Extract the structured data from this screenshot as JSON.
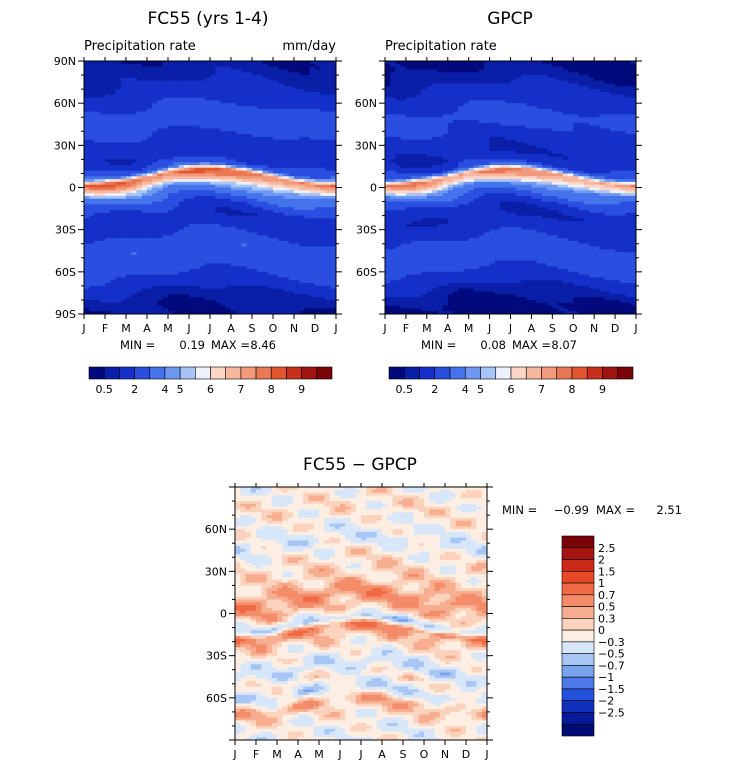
{
  "chart_data": [
    {
      "type": "heatmap",
      "title": "FC55 (yrs 1-4)",
      "subtitle_left": "Precipitation rate",
      "subtitle_right": "mm/day",
      "x_tick_labels": [
        "J",
        "F",
        "M",
        "A",
        "M",
        "J",
        "J",
        "A",
        "S",
        "O",
        "N",
        "D",
        "J"
      ],
      "y_tick_labels": [
        {
          "lat": 90,
          "label": "90N"
        },
        {
          "lat": 60,
          "label": "60N"
        },
        {
          "lat": 30,
          "label": "30N"
        },
        {
          "lat": 0,
          "label": "0"
        },
        {
          "lat": -30,
          "label": "30S"
        },
        {
          "lat": -60,
          "label": "60S"
        },
        {
          "lat": -90,
          "label": "90S"
        }
      ],
      "ylim": [
        -90,
        90
      ],
      "min_label": "MIN =",
      "min_value": "0.19",
      "max_label": "MAX =",
      "max_value": "8.46",
      "colorbar_levels": [
        "0.5",
        "2",
        "4",
        "5",
        "6",
        "7",
        "8",
        "9"
      ],
      "colorbar_colors": [
        "#000a7c",
        "#0a1fa8",
        "#1430c8",
        "#2a4fe0",
        "#4573ec",
        "#6f98f2",
        "#a6c4f6",
        "#eef1fb",
        "#fbd6c6",
        "#f8b8a0",
        "#f29a7b",
        "#ea7855",
        "#e1562f",
        "#c8301d",
        "#a01410",
        "#7a0508"
      ],
      "bands": [
        {
          "lat": 90,
          "value": 0.6
        },
        {
          "lat": 75,
          "value": 0.9
        },
        {
          "lat": 65,
          "value": 1.5
        },
        {
          "lat": 50,
          "value": 2.5
        },
        {
          "lat": 40,
          "value": 2.2
        },
        {
          "lat": 30,
          "value": 1.5
        },
        {
          "lat": 20,
          "value": 1.3
        },
        {
          "lat": 12,
          "value": 2.8
        },
        {
          "lat": 7,
          "value": 7.5
        },
        {
          "lat": 3,
          "value": 6.5
        },
        {
          "lat": -2,
          "value": 4.5
        },
        {
          "lat": -8,
          "value": 3.2
        },
        {
          "lat": -15,
          "value": 2.0
        },
        {
          "lat": -22,
          "value": 1.3
        },
        {
          "lat": -32,
          "value": 1.8
        },
        {
          "lat": -45,
          "value": 2.8
        },
        {
          "lat": -55,
          "value": 2.6
        },
        {
          "lat": -65,
          "value": 1.8
        },
        {
          "lat": -75,
          "value": 0.9
        },
        {
          "lat": -85,
          "value": 0.5
        }
      ]
    },
    {
      "type": "heatmap",
      "title": "GPCP",
      "subtitle_left": "Precipitation rate",
      "x_tick_labels": [
        "J",
        "F",
        "M",
        "A",
        "M",
        "J",
        "J",
        "A",
        "S",
        "O",
        "N",
        "D",
        "J"
      ],
      "y_tick_labels": [
        {
          "lat": 60,
          "label": "60N"
        },
        {
          "lat": 30,
          "label": "30N"
        },
        {
          "lat": 0,
          "label": "0"
        },
        {
          "lat": -30,
          "label": "30S"
        },
        {
          "lat": -60,
          "label": "60S"
        }
      ],
      "ylim": [
        -90,
        90
      ],
      "min_label": "MIN =",
      "min_value": "0.08",
      "max_label": "MAX =",
      "max_value": "8.07",
      "colorbar_levels": [
        "0.5",
        "2",
        "4",
        "5",
        "6",
        "7",
        "8",
        "9"
      ],
      "colorbar_colors": [
        "#000a7c",
        "#0a1fa8",
        "#1430c8",
        "#2a4fe0",
        "#4573ec",
        "#6f98f2",
        "#a6c4f6",
        "#eef1fb",
        "#fbd6c6",
        "#f8b8a0",
        "#f29a7b",
        "#ea7855",
        "#e1562f",
        "#c8301d",
        "#a01410",
        "#7a0508"
      ],
      "bands": [
        {
          "lat": 90,
          "value": 0.3
        },
        {
          "lat": 75,
          "value": 0.8
        },
        {
          "lat": 65,
          "value": 1.4
        },
        {
          "lat": 50,
          "value": 2.3
        },
        {
          "lat": 40,
          "value": 2.0
        },
        {
          "lat": 30,
          "value": 1.2
        },
        {
          "lat": 20,
          "value": 1.0
        },
        {
          "lat": 12,
          "value": 2.5
        },
        {
          "lat": 7,
          "value": 7.0
        },
        {
          "lat": 3,
          "value": 6.0
        },
        {
          "lat": -2,
          "value": 4.0
        },
        {
          "lat": -8,
          "value": 2.8
        },
        {
          "lat": -15,
          "value": 1.5
        },
        {
          "lat": -22,
          "value": 1.0
        },
        {
          "lat": -32,
          "value": 1.6
        },
        {
          "lat": -45,
          "value": 2.6
        },
        {
          "lat": -55,
          "value": 2.4
        },
        {
          "lat": -65,
          "value": 1.5
        },
        {
          "lat": -75,
          "value": 0.7
        },
        {
          "lat": -85,
          "value": 0.3
        }
      ]
    },
    {
      "type": "heatmap",
      "title": "FC55 − GPCP",
      "x_tick_labels": [
        "J",
        "F",
        "M",
        "A",
        "M",
        "J",
        "J",
        "A",
        "S",
        "O",
        "N",
        "D",
        "J"
      ],
      "y_tick_labels": [
        {
          "lat": 60,
          "label": "60N"
        },
        {
          "lat": 30,
          "label": "30N"
        },
        {
          "lat": 0,
          "label": "0"
        },
        {
          "lat": -30,
          "label": "30S"
        },
        {
          "lat": -60,
          "label": "60S"
        }
      ],
      "ylim": [
        -90,
        90
      ],
      "min_label": "MIN =",
      "min_value": "−0.99",
      "max_label": "MAX =",
      "max_value": "2.51",
      "colorbar_levels": [
        "2.5",
        "2",
        "1.5",
        "1",
        "0.7",
        "0.5",
        "0.3",
        "0",
        "−0.3",
        "−0.5",
        "−0.7",
        "−1",
        "−1.5",
        "−2",
        "−2.5"
      ],
      "colorbar_colors": [
        "#7a0508",
        "#a51410",
        "#cc2a18",
        "#e64a27",
        "#f06b45",
        "#f48c6a",
        "#f7ad8f",
        "#fbd3bd",
        "#fdeee4",
        "#d8e6fa",
        "#a7c6f3",
        "#7aa3ee",
        "#4d7ae8",
        "#2350dc",
        "#1030bc",
        "#061a9c",
        "#000c76"
      ],
      "bands": [
        {
          "lat": 90,
          "value": 0.1
        },
        {
          "lat": 75,
          "value": 0.25
        },
        {
          "lat": 65,
          "value": 0.15
        },
        {
          "lat": 50,
          "value": -0.1
        },
        {
          "lat": 40,
          "value": 0.2
        },
        {
          "lat": 30,
          "value": 0.3
        },
        {
          "lat": 20,
          "value": 0.4
        },
        {
          "lat": 10,
          "value": 0.8
        },
        {
          "lat": 4,
          "value": 0.6
        },
        {
          "lat": -2,
          "value": 0.3
        },
        {
          "lat": -8,
          "value": -0.3
        },
        {
          "lat": -13,
          "value": 0.9
        },
        {
          "lat": -20,
          "value": 0.4
        },
        {
          "lat": -30,
          "value": 0.1
        },
        {
          "lat": -40,
          "value": -0.2
        },
        {
          "lat": -48,
          "value": 0.2
        },
        {
          "lat": -57,
          "value": -0.2
        },
        {
          "lat": -66,
          "value": 0.6
        },
        {
          "lat": -75,
          "value": 0.2
        },
        {
          "lat": -85,
          "value": 0.05
        }
      ]
    }
  ]
}
